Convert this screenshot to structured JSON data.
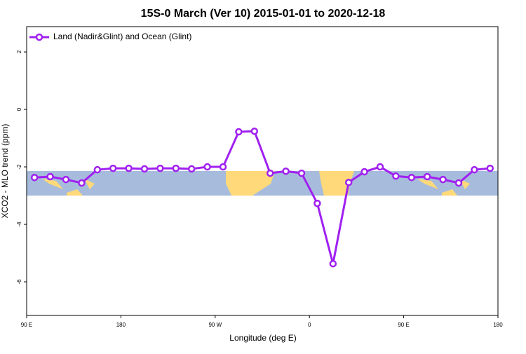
{
  "chart_data": {
    "type": "line",
    "title": "15S-0 March (Ver 10)   2015-01-01 to 2020-12-18",
    "xlabel": "Longitude (deg E)",
    "ylabel": "XCO2 - MLO trend (ppm)",
    "x": [
      97.5,
      112.5,
      127.5,
      142.5,
      157.5,
      172.5,
      187.5,
      202.5,
      217.5,
      232.5,
      247.5,
      262.5,
      277.5,
      292.5,
      307.5,
      322.5,
      337.5,
      352.5,
      367.5,
      382.5,
      397.5,
      412.5,
      427.5,
      442.5,
      457.5,
      472.5,
      487.5,
      502.5,
      517.5,
      532.5
    ],
    "series": [
      {
        "name": "Land (Nadir&Glint) and Ocean (Glint)",
        "color": "#a020f0",
        "values": [
          -2.37,
          -2.34,
          -2.44,
          -2.56,
          -2.1,
          -2.05,
          -2.05,
          -2.07,
          -2.05,
          -2.05,
          -2.07,
          -2.0,
          -2.0,
          -0.78,
          -0.76,
          -2.22,
          -2.15,
          -2.22,
          -3.27,
          -5.37,
          -2.54,
          -2.17,
          -2.0,
          -2.32,
          -2.37,
          -2.34,
          -2.44,
          -2.56,
          -2.1,
          -2.05
        ]
      }
    ],
    "xlim": [
      90,
      540
    ],
    "xticks": [
      {
        "value": 90,
        "label": "90 E"
      },
      {
        "value": 180,
        "label": "180"
      },
      {
        "value": 270,
        "label": "90 W"
      },
      {
        "value": 360,
        "label": "0"
      },
      {
        "value": 450,
        "label": "90 E"
      },
      {
        "value": 540,
        "label": "180"
      }
    ],
    "ylim": [
      -7.17,
      2.88
    ],
    "yticks": [
      -6,
      -4,
      -2,
      0,
      2
    ],
    "legend": "upper left"
  }
}
